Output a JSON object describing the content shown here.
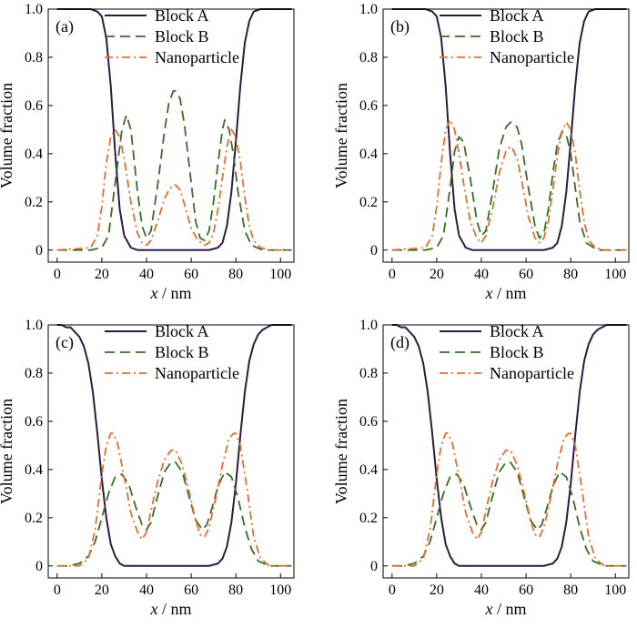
{
  "chart_data": [
    {
      "type": "line",
      "panel_label": "(a)",
      "xlabel_var": "x",
      "xlabel_unit": " / nm",
      "ylabel": "Volume fraction",
      "xlim": [
        -4,
        106
      ],
      "ylim": [
        -0.05,
        1.0
      ],
      "xticks": [
        0,
        20,
        40,
        60,
        80,
        100
      ],
      "yticks": [
        0,
        0.2,
        0.4,
        0.6,
        0.8,
        1.0
      ],
      "ytick_labels": [
        "0",
        "0.2",
        "0.4",
        "0.6",
        "0.8",
        "1.0"
      ],
      "grid": false,
      "legend_position": "top-right",
      "series": [
        {
          "name": "Block A",
          "color": "#2d1b44",
          "dash": "solid",
          "x": [
            0,
            10,
            15,
            18,
            20,
            22,
            24,
            26,
            28,
            30,
            33,
            36,
            40,
            50,
            60,
            68,
            72,
            74,
            76,
            78,
            80,
            82,
            84,
            86,
            88,
            91,
            95,
            100,
            105
          ],
          "values": [
            1.0,
            1.0,
            1.0,
            0.99,
            0.97,
            0.88,
            0.68,
            0.4,
            0.17,
            0.06,
            0.01,
            0,
            0,
            0,
            0,
            0,
            0.01,
            0.03,
            0.1,
            0.24,
            0.45,
            0.68,
            0.86,
            0.95,
            0.99,
            1.0,
            1.0,
            1.0,
            1.0
          ]
        },
        {
          "name": "Block B",
          "color": "#3a6b2a",
          "dash": "long",
          "x": [
            0,
            15,
            20,
            23,
            26,
            29,
            31,
            33,
            36,
            38,
            40,
            42,
            45,
            48,
            50,
            52,
            53,
            55,
            57,
            60,
            62,
            64,
            66,
            68,
            70,
            72,
            74,
            75,
            77,
            79,
            81,
            84,
            87,
            92,
            100,
            105
          ],
          "values": [
            0,
            0,
            0.01,
            0.06,
            0.28,
            0.5,
            0.56,
            0.5,
            0.24,
            0.1,
            0.05,
            0.08,
            0.27,
            0.49,
            0.61,
            0.66,
            0.66,
            0.63,
            0.52,
            0.28,
            0.12,
            0.05,
            0.04,
            0.08,
            0.2,
            0.36,
            0.5,
            0.54,
            0.5,
            0.39,
            0.24,
            0.08,
            0.02,
            0,
            0,
            0
          ]
        },
        {
          "name": "Nanoparticle",
          "color": "#e07030",
          "dash": "dashdot",
          "x": [
            0,
            15,
            18,
            20,
            22,
            24,
            26,
            28,
            30,
            33,
            36,
            38,
            40,
            42,
            45,
            48,
            50,
            52,
            53,
            55,
            57,
            60,
            63,
            66,
            68,
            70,
            72,
            74,
            76,
            78,
            80,
            82,
            84,
            86,
            88,
            91,
            95,
            100,
            105
          ],
          "values": [
            0,
            0.01,
            0.06,
            0.18,
            0.36,
            0.47,
            0.5,
            0.47,
            0.38,
            0.2,
            0.07,
            0.03,
            0.02,
            0.04,
            0.12,
            0.21,
            0.25,
            0.27,
            0.27,
            0.25,
            0.19,
            0.09,
            0.04,
            0.02,
            0.03,
            0.07,
            0.17,
            0.3,
            0.43,
            0.5,
            0.47,
            0.37,
            0.22,
            0.1,
            0.04,
            0.01,
            0,
            0,
            0
          ]
        }
      ]
    },
    {
      "type": "line",
      "panel_label": "(b)",
      "xlabel_var": "x",
      "xlabel_unit": " / nm",
      "ylabel": "Volume fraction",
      "xlim": [
        -4,
        106
      ],
      "ylim": [
        -0.05,
        1.0
      ],
      "xticks": [
        0,
        20,
        40,
        60,
        80,
        100
      ],
      "yticks": [
        0,
        0.2,
        0.4,
        0.6,
        0.8,
        1.0
      ],
      "ytick_labels": [
        "0",
        "0.2",
        "0.4",
        "0.6",
        "0.8",
        "1.0"
      ],
      "grid": false,
      "legend_position": "top-right",
      "series": [
        {
          "name": "Block A",
          "color": "#2d1b44",
          "dash": "solid",
          "x": [
            0,
            10,
            15,
            18,
            20,
            22,
            24,
            26,
            28,
            30,
            33,
            36,
            40,
            50,
            60,
            68,
            72,
            74,
            76,
            78,
            80,
            82,
            84,
            86,
            88,
            91,
            95,
            100,
            105
          ],
          "values": [
            1.0,
            1.0,
            1.0,
            0.99,
            0.97,
            0.88,
            0.68,
            0.4,
            0.17,
            0.06,
            0.01,
            0,
            0,
            0,
            0,
            0,
            0.01,
            0.03,
            0.1,
            0.24,
            0.45,
            0.68,
            0.86,
            0.95,
            0.99,
            1.0,
            1.0,
            1.0,
            1.0
          ]
        },
        {
          "name": "Block B",
          "color": "#3a6b2a",
          "dash": "long",
          "x": [
            0,
            15,
            20,
            23,
            26,
            28,
            30,
            32,
            35,
            38,
            40,
            42,
            45,
            48,
            51,
            53,
            54,
            56,
            58,
            61,
            64,
            66,
            68,
            70,
            72,
            74,
            76,
            78,
            80,
            82,
            84,
            87,
            92,
            100,
            105
          ],
          "values": [
            0,
            0,
            0.01,
            0.06,
            0.26,
            0.41,
            0.47,
            0.45,
            0.3,
            0.12,
            0.06,
            0.08,
            0.24,
            0.42,
            0.51,
            0.53,
            0.53,
            0.51,
            0.44,
            0.26,
            0.1,
            0.05,
            0.07,
            0.17,
            0.32,
            0.44,
            0.49,
            0.48,
            0.4,
            0.26,
            0.12,
            0.03,
            0,
            0,
            0
          ]
        },
        {
          "name": "Nanoparticle",
          "color": "#e07030",
          "dash": "dashdot",
          "x": [
            0,
            15,
            18,
            20,
            22,
            24,
            26,
            28,
            30,
            32,
            35,
            38,
            40,
            42,
            45,
            48,
            51,
            53,
            54,
            56,
            58,
            61,
            64,
            66,
            68,
            70,
            72,
            74,
            76,
            78,
            80,
            82,
            84,
            86,
            88,
            91,
            95,
            100,
            105
          ],
          "values": [
            0,
            0.01,
            0.06,
            0.18,
            0.36,
            0.5,
            0.54,
            0.5,
            0.4,
            0.28,
            0.12,
            0.05,
            0.03,
            0.06,
            0.17,
            0.32,
            0.41,
            0.43,
            0.42,
            0.38,
            0.29,
            0.14,
            0.05,
            0.03,
            0.05,
            0.12,
            0.25,
            0.39,
            0.49,
            0.53,
            0.5,
            0.4,
            0.25,
            0.12,
            0.04,
            0.01,
            0,
            0,
            0
          ]
        }
      ]
    },
    {
      "type": "line",
      "panel_label": "(c)",
      "xlabel_var": "x",
      "xlabel_unit": " / nm",
      "ylabel": "Volume fraction",
      "xlim": [
        -4,
        106
      ],
      "ylim": [
        -0.05,
        1.0
      ],
      "xticks": [
        0,
        20,
        40,
        60,
        80,
        100
      ],
      "yticks": [
        0,
        0.2,
        0.4,
        0.6,
        0.8,
        1.0
      ],
      "ytick_labels": [
        "0",
        "0.2",
        "0.4",
        "0.6",
        "0.8",
        "1.0"
      ],
      "grid": false,
      "legend_position": "top-right",
      "series": [
        {
          "name": "Block A",
          "color": "#2d1b44",
          "dash": "solid",
          "x": [
            0,
            2,
            4,
            6,
            8,
            10,
            12,
            14,
            16,
            18,
            20,
            22,
            24,
            26,
            28,
            30,
            33,
            36,
            40,
            50,
            60,
            68,
            72,
            74,
            76,
            78,
            80,
            82,
            84,
            86,
            88,
            90,
            92,
            94,
            96,
            100,
            105
          ],
          "values": [
            1.0,
            1.0,
            0.99,
            0.99,
            0.97,
            0.95,
            0.91,
            0.84,
            0.72,
            0.55,
            0.36,
            0.2,
            0.09,
            0.04,
            0.01,
            0,
            0,
            0,
            0,
            0,
            0,
            0,
            0.01,
            0.03,
            0.08,
            0.18,
            0.34,
            0.54,
            0.72,
            0.85,
            0.92,
            0.96,
            0.98,
            0.99,
            1.0,
            1.0,
            1.0
          ]
        },
        {
          "name": "Block B",
          "color": "#3a6b2a",
          "dash": "long",
          "x": [
            0,
            5,
            10,
            14,
            17,
            20,
            23,
            26,
            29,
            32,
            35,
            38,
            40,
            42,
            45,
            48,
            51,
            53,
            56,
            59,
            62,
            65,
            67,
            69,
            72,
            75,
            78,
            81,
            84,
            87,
            90,
            95,
            100,
            105
          ],
          "values": [
            0,
            0,
            0.01,
            0.04,
            0.1,
            0.2,
            0.3,
            0.37,
            0.38,
            0.34,
            0.25,
            0.17,
            0.15,
            0.18,
            0.29,
            0.39,
            0.43,
            0.43,
            0.39,
            0.29,
            0.19,
            0.15,
            0.17,
            0.23,
            0.33,
            0.39,
            0.37,
            0.28,
            0.16,
            0.07,
            0.02,
            0,
            0,
            0
          ]
        },
        {
          "name": "Nanoparticle",
          "color": "#e07030",
          "dash": "dashdot",
          "x": [
            0,
            10,
            14,
            17,
            20,
            22,
            24,
            25,
            27,
            30,
            33,
            36,
            38,
            40,
            42,
            45,
            48,
            51,
            53,
            56,
            59,
            62,
            64,
            66,
            68,
            71,
            74,
            77,
            79,
            80,
            82,
            85,
            88,
            91,
            95,
            100,
            105
          ],
          "values": [
            0,
            0,
            0.03,
            0.15,
            0.38,
            0.5,
            0.55,
            0.55,
            0.51,
            0.37,
            0.22,
            0.14,
            0.11,
            0.14,
            0.23,
            0.35,
            0.44,
            0.48,
            0.48,
            0.42,
            0.31,
            0.19,
            0.13,
            0.12,
            0.16,
            0.28,
            0.42,
            0.53,
            0.55,
            0.55,
            0.5,
            0.32,
            0.12,
            0.03,
            0,
            0,
            0
          ]
        }
      ]
    },
    {
      "type": "line",
      "panel_label": "(d)",
      "xlabel_var": "x",
      "xlabel_unit": " / nm",
      "ylabel": "Volume fraction",
      "xlim": [
        -4,
        106
      ],
      "ylim": [
        -0.05,
        1.0
      ],
      "xticks": [
        0,
        20,
        40,
        60,
        80,
        100
      ],
      "yticks": [
        0,
        0.2,
        0.4,
        0.6,
        0.8,
        1.0
      ],
      "ytick_labels": [
        "0",
        "0.2",
        "0.4",
        "0.6",
        "0.8",
        "1.0"
      ],
      "grid": false,
      "legend_position": "top-right",
      "series": [
        {
          "name": "Block A",
          "color": "#2d1b44",
          "dash": "solid",
          "x": [
            0,
            2,
            4,
            6,
            8,
            10,
            12,
            14,
            16,
            18,
            20,
            22,
            24,
            26,
            28,
            30,
            33,
            36,
            40,
            50,
            60,
            68,
            72,
            74,
            76,
            78,
            80,
            82,
            84,
            86,
            88,
            90,
            92,
            94,
            96,
            100,
            105
          ],
          "values": [
            1.0,
            1.0,
            0.99,
            0.99,
            0.97,
            0.95,
            0.91,
            0.84,
            0.72,
            0.55,
            0.36,
            0.2,
            0.09,
            0.04,
            0.01,
            0,
            0,
            0,
            0,
            0,
            0,
            0,
            0.01,
            0.03,
            0.08,
            0.18,
            0.34,
            0.54,
            0.72,
            0.85,
            0.92,
            0.96,
            0.98,
            0.99,
            1.0,
            1.0,
            1.0
          ]
        },
        {
          "name": "Block B",
          "color": "#3a6b2a",
          "dash": "long",
          "x": [
            0,
            5,
            10,
            14,
            17,
            20,
            23,
            26,
            29,
            32,
            35,
            38,
            40,
            42,
            45,
            48,
            51,
            53,
            56,
            59,
            62,
            65,
            67,
            69,
            72,
            75,
            78,
            81,
            84,
            87,
            90,
            95,
            100,
            105
          ],
          "values": [
            0,
            0,
            0.01,
            0.04,
            0.1,
            0.2,
            0.3,
            0.37,
            0.38,
            0.34,
            0.25,
            0.17,
            0.15,
            0.18,
            0.29,
            0.39,
            0.43,
            0.43,
            0.39,
            0.29,
            0.19,
            0.15,
            0.17,
            0.23,
            0.33,
            0.39,
            0.37,
            0.28,
            0.16,
            0.07,
            0.02,
            0,
            0,
            0
          ]
        },
        {
          "name": "Nanoparticle",
          "color": "#e07030",
          "dash": "dashdot",
          "x": [
            0,
            10,
            14,
            17,
            20,
            22,
            24,
            25,
            27,
            30,
            33,
            36,
            38,
            40,
            42,
            45,
            48,
            51,
            53,
            56,
            59,
            62,
            64,
            66,
            68,
            71,
            74,
            77,
            79,
            80,
            82,
            85,
            88,
            91,
            95,
            100,
            105
          ],
          "values": [
            0,
            0,
            0.03,
            0.15,
            0.38,
            0.5,
            0.55,
            0.55,
            0.51,
            0.37,
            0.22,
            0.14,
            0.11,
            0.14,
            0.23,
            0.35,
            0.44,
            0.48,
            0.48,
            0.42,
            0.31,
            0.19,
            0.13,
            0.12,
            0.16,
            0.28,
            0.42,
            0.53,
            0.55,
            0.55,
            0.5,
            0.32,
            0.12,
            0.03,
            0,
            0,
            0
          ]
        }
      ]
    }
  ]
}
